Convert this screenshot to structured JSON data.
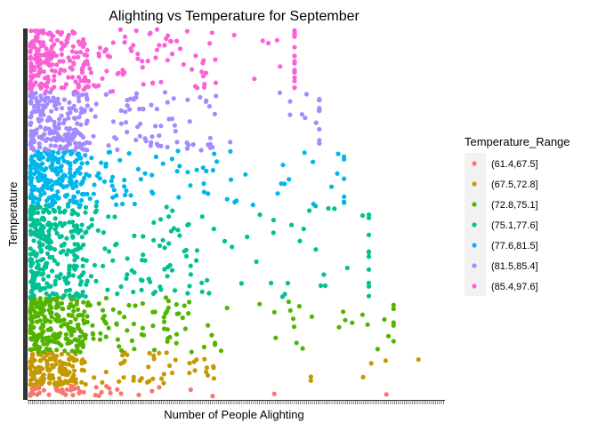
{
  "chart_data": {
    "type": "scatter",
    "title": "Alighting vs Temperature for September",
    "xlabel": "Number of People Alighting",
    "ylabel": "Temperature",
    "legend": {
      "title": "Temperature_Range",
      "placement": "right"
    },
    "grid": false,
    "background": "#ffffff",
    "axis_color": "#333333",
    "series": [
      {
        "name": "(61.4,67.5]",
        "color": "#F8766D",
        "band": [
          0.0,
          0.03
        ],
        "n": 50
      },
      {
        "name": "(67.5,72.8]",
        "color": "#C49A00",
        "band": [
          0.03,
          0.12
        ],
        "n": 190
      },
      {
        "name": "(72.8,75.1]",
        "color": "#53B400",
        "band": [
          0.12,
          0.27
        ],
        "n": 320
      },
      {
        "name": "(75.1,77.6]",
        "color": "#00C094",
        "band": [
          0.27,
          0.52
        ],
        "n": 380
      },
      {
        "name": "(77.6,81.5]",
        "color": "#00B6EB",
        "band": [
          0.52,
          0.67
        ],
        "n": 290
      },
      {
        "name": "(81.5,85.4]",
        "color": "#A58AFF",
        "band": [
          0.67,
          0.83
        ],
        "n": 290
      },
      {
        "name": "(85.4,97.6]",
        "color": "#FB61D7",
        "band": [
          0.83,
          1.0
        ],
        "n": 300
      }
    ]
  }
}
